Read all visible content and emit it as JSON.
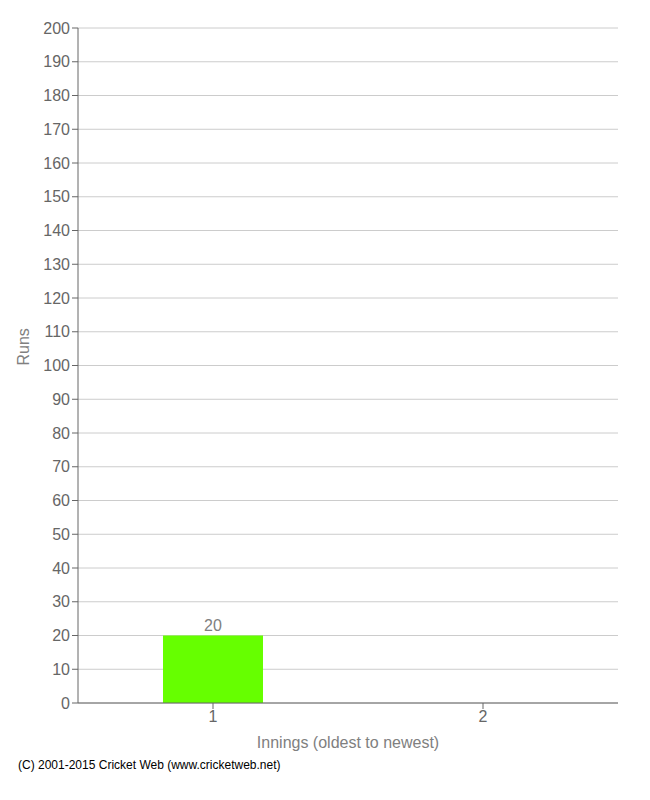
{
  "chart_data": {
    "type": "bar",
    "categories": [
      "1",
      "2"
    ],
    "values": [
      20,
      0
    ],
    "color": "#66ff00",
    "xlabel": "Innings (oldest to newest)",
    "ylabel": "Runs",
    "ylim": [
      0,
      200
    ],
    "yticks": [
      0,
      10,
      20,
      30,
      40,
      50,
      60,
      70,
      80,
      90,
      100,
      110,
      120,
      130,
      140,
      150,
      160,
      170,
      180,
      190,
      200
    ],
    "grid": true,
    "data_labels": true,
    "annotations": [
      "(C) 2001-2015 Cricket Web (www.cricketweb.net)"
    ]
  }
}
